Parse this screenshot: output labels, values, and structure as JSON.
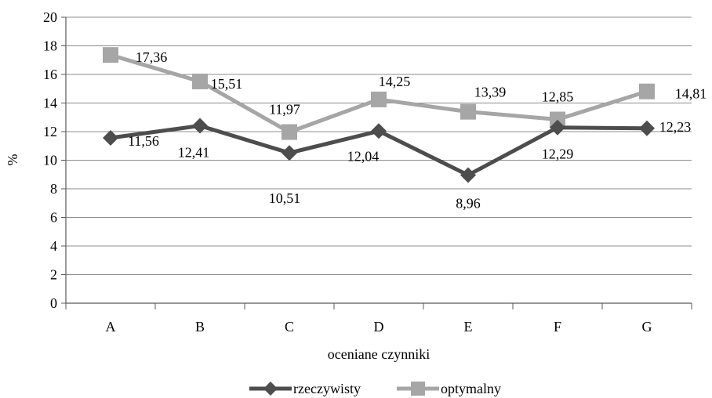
{
  "chart_data": {
    "type": "line",
    "categories": [
      "A",
      "B",
      "C",
      "D",
      "E",
      "F",
      "G"
    ],
    "xlabel": "oceniane czynniki",
    "ylabel": "%",
    "ylim": [
      0,
      20
    ],
    "yticks": [
      "0",
      "2",
      "4",
      "6",
      "8",
      "10",
      "12",
      "14",
      "16",
      "18",
      "20"
    ],
    "grid": true,
    "legend_position": "bottom",
    "series": [
      {
        "name": "rzeczywisty",
        "values": [
          11.56,
          12.41,
          10.51,
          12.04,
          8.96,
          12.29,
          12.23
        ],
        "labels": [
          "11,56",
          "12,41",
          "10,51",
          "12,04",
          "8,96",
          "12,29",
          "12,23"
        ],
        "color": "#4d4d4d",
        "marker": "diamond"
      },
      {
        "name": "optymalny",
        "values": [
          17.36,
          15.51,
          11.97,
          14.25,
          13.39,
          12.85,
          14.81
        ],
        "labels": [
          "17,36",
          "15,51",
          "11,97",
          "14,25",
          "13,39",
          "12,85",
          "14,81"
        ],
        "color": "#a6a6a6",
        "marker": "square"
      }
    ]
  }
}
